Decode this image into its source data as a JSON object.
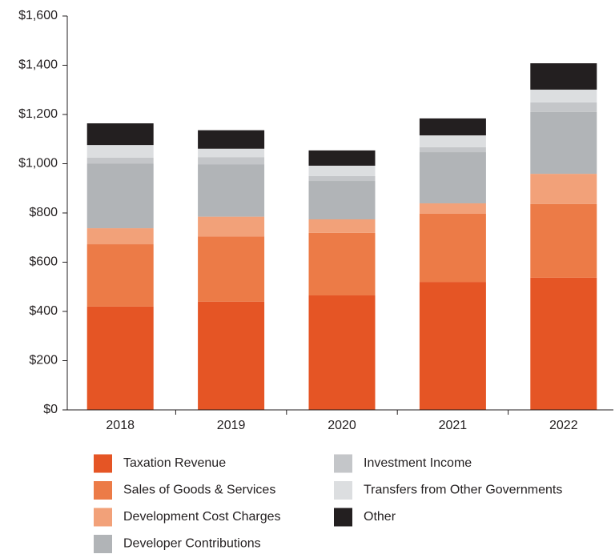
{
  "chart_data": {
    "type": "stacked_bar",
    "categories": [
      "2018",
      "2019",
      "2020",
      "2021",
      "2022"
    ],
    "series": [
      {
        "name": "Taxation Revenue",
        "color": "#e55525",
        "values": [
          420,
          440,
          465,
          520,
          537
        ]
      },
      {
        "name": "Sales of Goods & Services",
        "color": "#ec7b47",
        "values": [
          253,
          265,
          254,
          277,
          299
        ]
      },
      {
        "name": "Development Cost Charges",
        "color": "#f2a179",
        "values": [
          65,
          80,
          55,
          42,
          123
        ]
      },
      {
        "name": "Developer Contributions",
        "color": "#b1b4b7",
        "values": [
          262,
          213,
          156,
          208,
          251
        ]
      },
      {
        "name": "Investment Income",
        "color": "#c4c6c9",
        "values": [
          25,
          28,
          20,
          20,
          39
        ]
      },
      {
        "name": "Transfers from Other Governments",
        "color": "#dcdee0",
        "values": [
          51,
          35,
          42,
          48,
          52
        ]
      },
      {
        "name": "Other",
        "color": "#231f20",
        "values": [
          88,
          75,
          62,
          69,
          107
        ]
      }
    ],
    "ylim": [
      0,
      1600
    ],
    "yticks": [
      {
        "value": 0,
        "label": "$0"
      },
      {
        "value": 200,
        "label": "$200"
      },
      {
        "value": 400,
        "label": "$400"
      },
      {
        "value": 600,
        "label": "$600"
      },
      {
        "value": 800,
        "label": "$800"
      },
      {
        "value": 1000,
        "label": "$1,000"
      },
      {
        "value": 1200,
        "label": "$1,200"
      },
      {
        "value": 1400,
        "label": "$1,400"
      },
      {
        "value": 1600,
        "label": "$1,600"
      }
    ],
    "legend": "bottom"
  }
}
